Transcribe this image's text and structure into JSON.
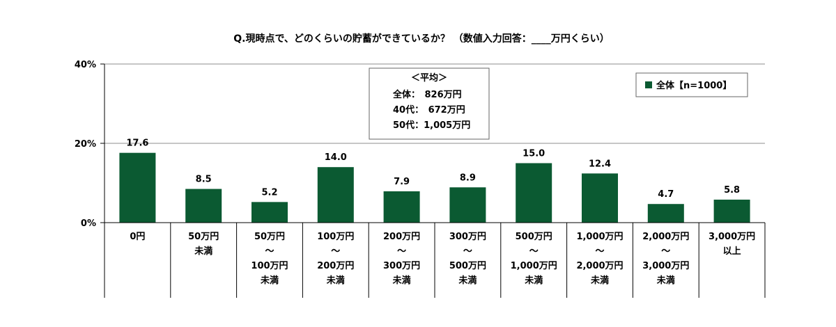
{
  "chart_data": {
    "type": "bar",
    "title": "Q.現時点で、どのくらいの貯蓄ができているか？ （数値入力回答：____万円くらい）",
    "ylim": [
      0,
      40
    ],
    "yticks": [
      "0%",
      "20%",
      "40%"
    ],
    "ytick_values": [
      0,
      20,
      40
    ],
    "grid": true,
    "legend_position": "top-right",
    "categories": [
      [
        "0円"
      ],
      [
        "50万円",
        "未満"
      ],
      [
        "50万円",
        "～",
        "100万円",
        "未満"
      ],
      [
        "100万円",
        "～",
        "200万円",
        "未満"
      ],
      [
        "200万円",
        "～",
        "300万円",
        "未満"
      ],
      [
        "300万円",
        "～",
        "500万円",
        "未満"
      ],
      [
        "500万円",
        "～",
        "1,000万円",
        "未満"
      ],
      [
        "1,000万円",
        "～",
        "2,000万円",
        "未満"
      ],
      [
        "2,000万円",
        "～",
        "3,000万円",
        "未満"
      ],
      [
        "3,000万円",
        "以上"
      ]
    ],
    "series": [
      {
        "name": "全体【n=1000】",
        "color": "#0b5a32",
        "values": [
          17.6,
          8.5,
          5.2,
          14.0,
          7.9,
          8.9,
          15.0,
          12.4,
          4.7,
          5.8
        ],
        "labels": [
          "17.6",
          "8.5",
          "5.2",
          "14.0",
          "7.9",
          "8.9",
          "15.0",
          "12.4",
          "4.7",
          "5.8"
        ]
      }
    ],
    "annotation": {
      "heading": "＜平均＞",
      "lines": [
        "全体：　826万円",
        "40代：　672万円",
        "50代：1,005万円"
      ]
    }
  }
}
